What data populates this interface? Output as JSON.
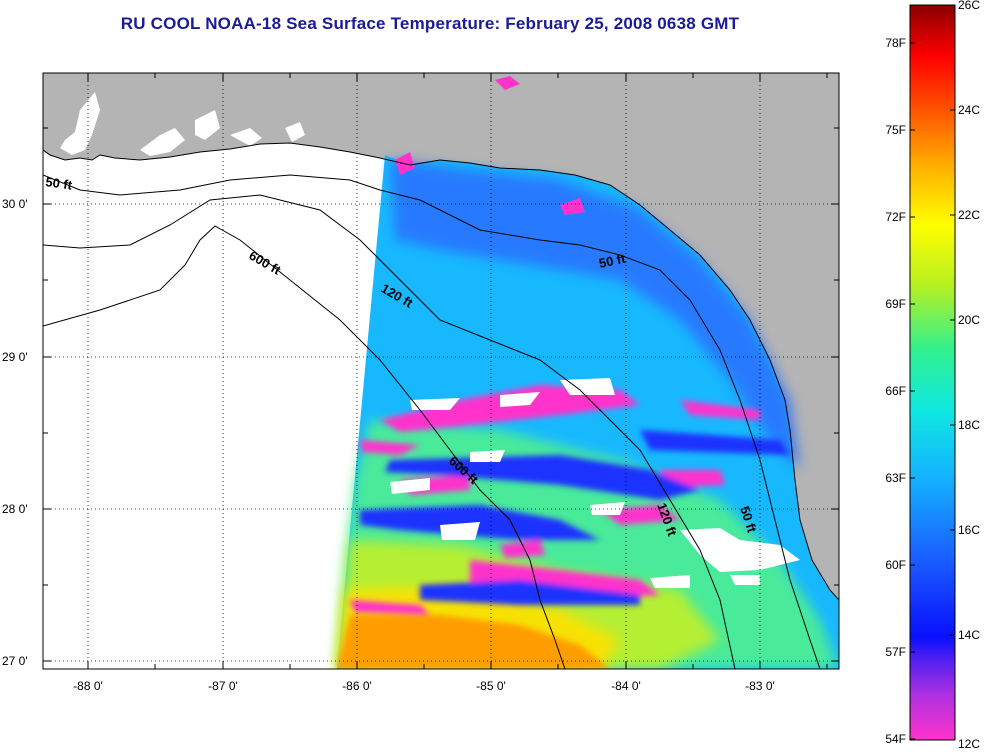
{
  "title": "RU COOL  NOAA-18  Sea Surface Temperature:  February 25, 2008 0638 GMT",
  "map": {
    "lat_labels": [
      "30 0'",
      "29 0'",
      "28 0'",
      "27 0'"
    ],
    "lon_labels": [
      "-88 0'",
      "-87 0'",
      "-86 0'",
      "-85 0'",
      "-84 0'",
      "-83 0'"
    ],
    "contour_labels": [
      "50 ft",
      "600 ft",
      "120 ft",
      "50 ft",
      "600 ft",
      "120 ft",
      "50 ft"
    ],
    "colors": {
      "land": "#b4b4b4",
      "no_data": "#ffffff",
      "coast": "#000000"
    }
  },
  "colorbar": {
    "celsius_labels": [
      "26C",
      "24C",
      "22C",
      "20C",
      "18C",
      "16C",
      "14C",
      "12C"
    ],
    "fahrenheit_labels": [
      "78F",
      "75F",
      "72F",
      "69F",
      "66F",
      "63F",
      "60F",
      "57F",
      "54F"
    ],
    "stops": [
      "#ff33cc",
      "#7a20e0",
      "#0a10ff",
      "#1a60ff",
      "#14b4ff",
      "#10e8e0",
      "#30f080",
      "#c8f020",
      "#ffff00",
      "#ffb000",
      "#ff5000",
      "#ff0000",
      "#8a0000"
    ]
  }
}
